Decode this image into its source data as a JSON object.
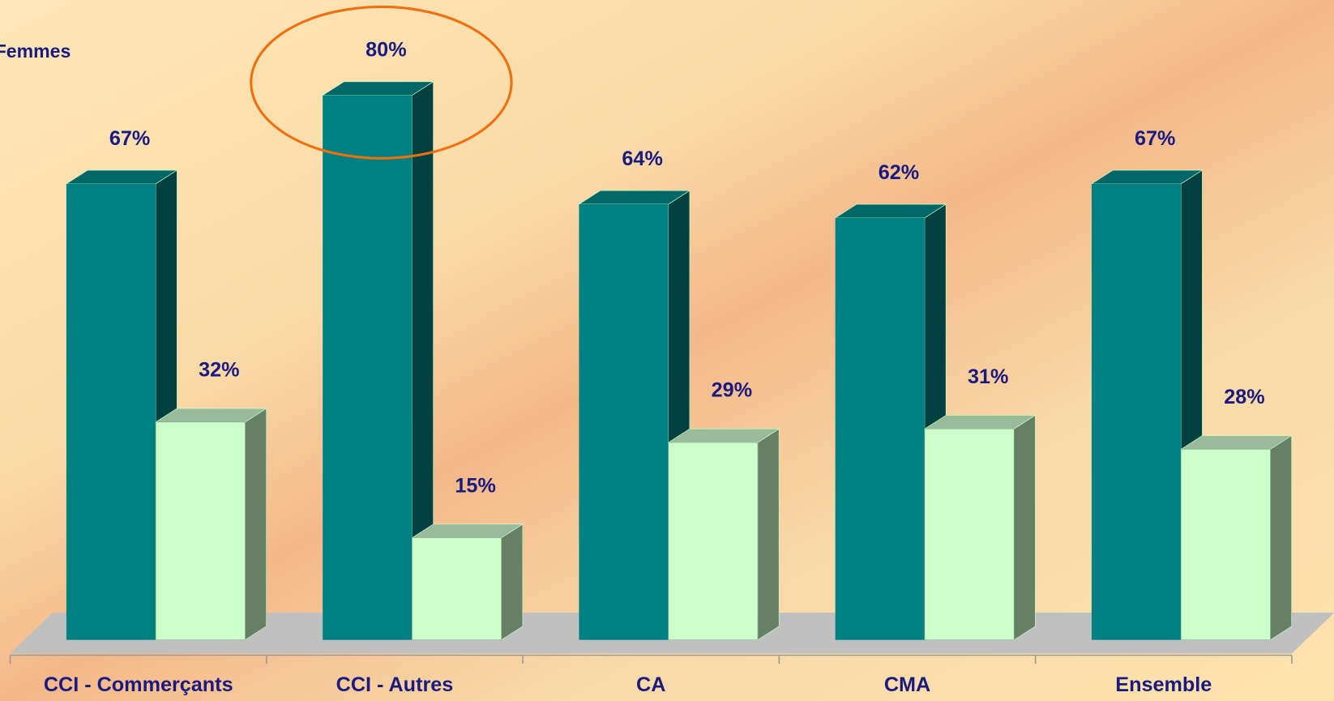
{
  "chart_data": {
    "type": "bar3d",
    "categories": [
      "CCI - Commerçants",
      "CCI - Autres",
      "CA",
      "CMA",
      "Ensemble"
    ],
    "series": [
      {
        "name": "Femmes",
        "color": "#008080",
        "values": [
          67,
          80,
          64,
          62,
          67
        ],
        "value_labels": [
          "67%",
          "80%",
          "64%",
          "62%",
          "67%"
        ]
      },
      {
        "color": "#ccffcc",
        "values": [
          32,
          15,
          29,
          31,
          28
        ],
        "value_labels": [
          "32%",
          "15%",
          "29%",
          "31%",
          "28%"
        ]
      }
    ]
  }
}
